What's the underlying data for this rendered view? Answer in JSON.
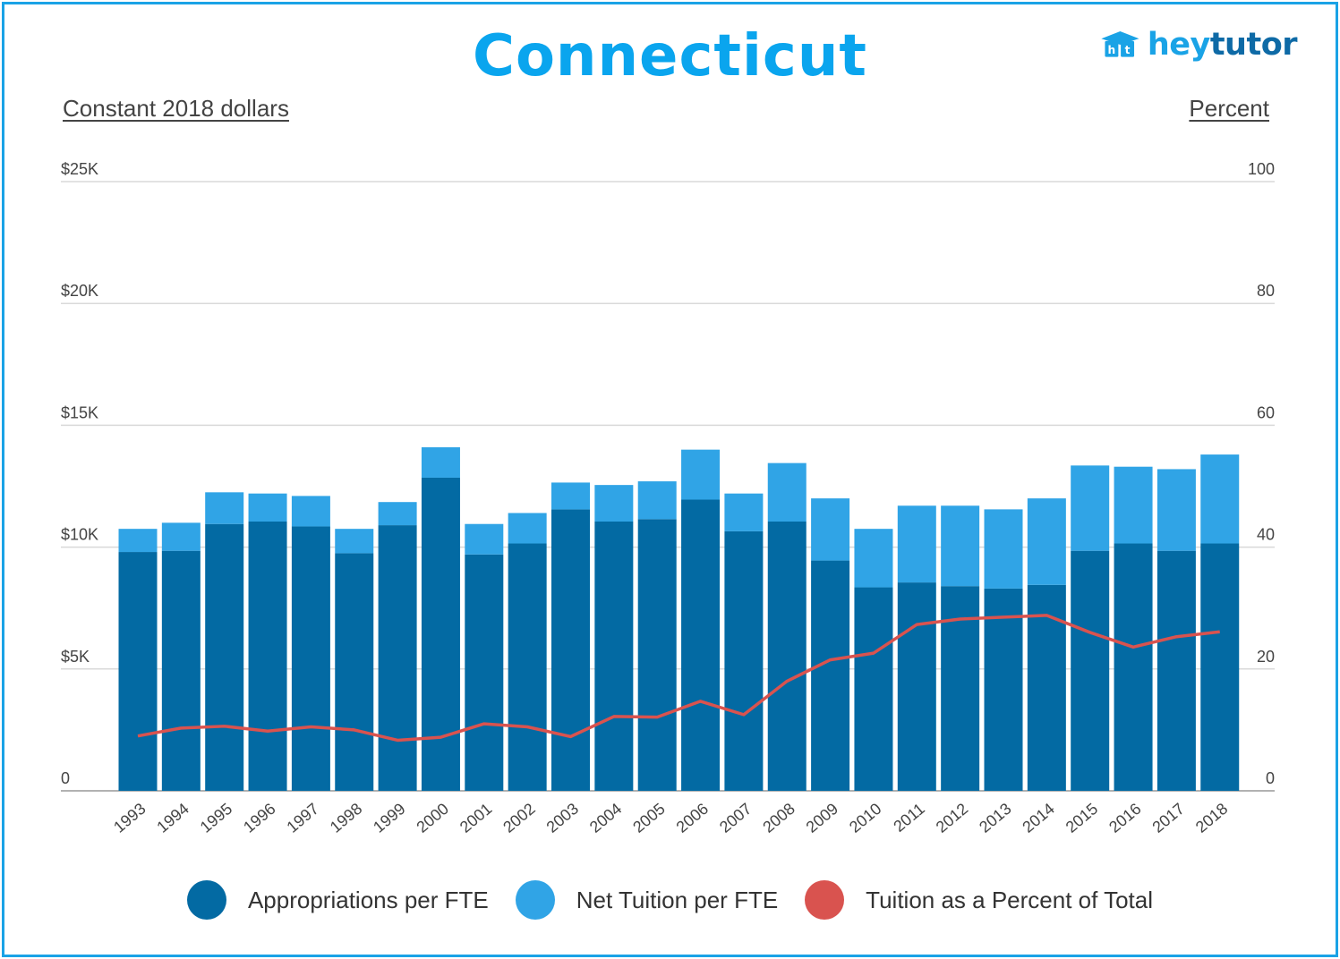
{
  "header": {
    "title": "Connecticut",
    "left_axis_title": "Constant 2018 dollars",
    "right_axis_title": "Percent",
    "logo_text_1": "hey",
    "logo_text_2": "tutor",
    "logo_badge": "ht"
  },
  "colors": {
    "appropriations": "#036aa3",
    "tuition": "#30a4e6",
    "percent_line": "#d9534f",
    "grid": "#d9d9d9",
    "border": "#1aa3e6",
    "title": "#0aa5ee"
  },
  "chart_data": {
    "type": "bar",
    "stacked": true,
    "categories": [
      "1993",
      "1994",
      "1995",
      "1996",
      "1997",
      "1998",
      "1999",
      "2000",
      "2001",
      "2002",
      "2003",
      "2004",
      "2005",
      "2006",
      "2007",
      "2008",
      "2009",
      "2010",
      "2011",
      "2012",
      "2013",
      "2014",
      "2015",
      "2016",
      "2017",
      "2018"
    ],
    "series": [
      {
        "name": "Appropriations per FTE",
        "axis": "left",
        "values": [
          9800,
          9850,
          10950,
          11050,
          10850,
          9750,
          10900,
          12850,
          9700,
          10150,
          11550,
          11050,
          11150,
          11950,
          10650,
          11050,
          9450,
          8350,
          8550,
          8400,
          8300,
          8450,
          9850,
          10150,
          9850,
          10150
        ]
      },
      {
        "name": "Net Tuition per FTE",
        "axis": "left",
        "values": [
          950,
          1150,
          1300,
          1150,
          1250,
          1000,
          950,
          1250,
          1250,
          1250,
          1100,
          1500,
          1550,
          2050,
          1550,
          2400,
          2550,
          2400,
          3150,
          3300,
          3250,
          3550,
          3500,
          3150,
          3350,
          3650
        ]
      },
      {
        "name": "Tuition as a Percent of Total",
        "axis": "right",
        "type": "line",
        "values": [
          9,
          10.3,
          10.6,
          9.8,
          10.5,
          10,
          8.3,
          8.8,
          11,
          10.5,
          8.9,
          12.2,
          12.1,
          14.7,
          12.5,
          18,
          21.5,
          22.6,
          27.3,
          28.2,
          28.5,
          28.8,
          26,
          23.6,
          25.3,
          26.1
        ]
      }
    ],
    "y_left": {
      "min": 0,
      "max": 25000,
      "ticks": [
        0,
        5000,
        10000,
        15000,
        20000,
        25000
      ],
      "tick_labels": [
        "0",
        "$5K",
        "$10K",
        "$15K",
        "$20K",
        "$25K"
      ]
    },
    "y_right": {
      "min": 0,
      "max": 100,
      "ticks": [
        0,
        20,
        40,
        60,
        80,
        100
      ],
      "tick_labels": [
        "0",
        "20",
        "40",
        "60",
        "80",
        "100"
      ]
    },
    "grid": true,
    "legend_position": "bottom"
  }
}
